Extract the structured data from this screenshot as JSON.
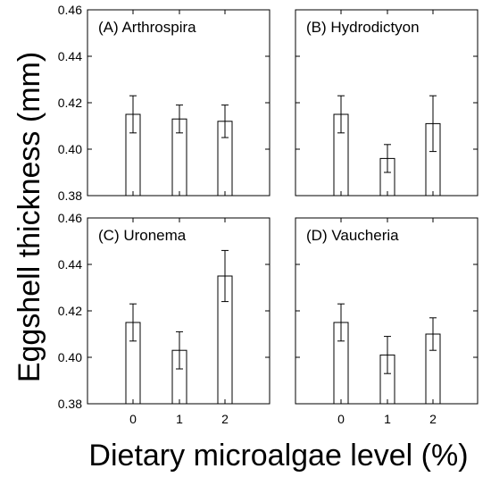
{
  "chart_data": {
    "type": "bar",
    "ylabel": "Eggshell thickness (mm)",
    "xlabel": "Dietary microalgae level (%)",
    "categories": [
      "0",
      "1",
      "2"
    ],
    "ylim": [
      0.38,
      0.46
    ],
    "yticks": [
      "0.38",
      "0.40",
      "0.42",
      "0.44",
      "0.46"
    ],
    "grid": false,
    "panels": [
      {
        "label": "(A) Arthrospira",
        "values": [
          0.415,
          0.413,
          0.412
        ],
        "errors": [
          0.008,
          0.006,
          0.007
        ]
      },
      {
        "label": "(B) Hydrodictyon",
        "values": [
          0.415,
          0.396,
          0.411
        ],
        "errors": [
          0.008,
          0.006,
          0.012
        ]
      },
      {
        "label": "(C) Uronema",
        "values": [
          0.415,
          0.403,
          0.435
        ],
        "errors": [
          0.008,
          0.008,
          0.011
        ]
      },
      {
        "label": "(D) Vaucheria",
        "values": [
          0.415,
          0.401,
          0.41
        ],
        "errors": [
          0.008,
          0.008,
          0.007
        ]
      }
    ]
  }
}
